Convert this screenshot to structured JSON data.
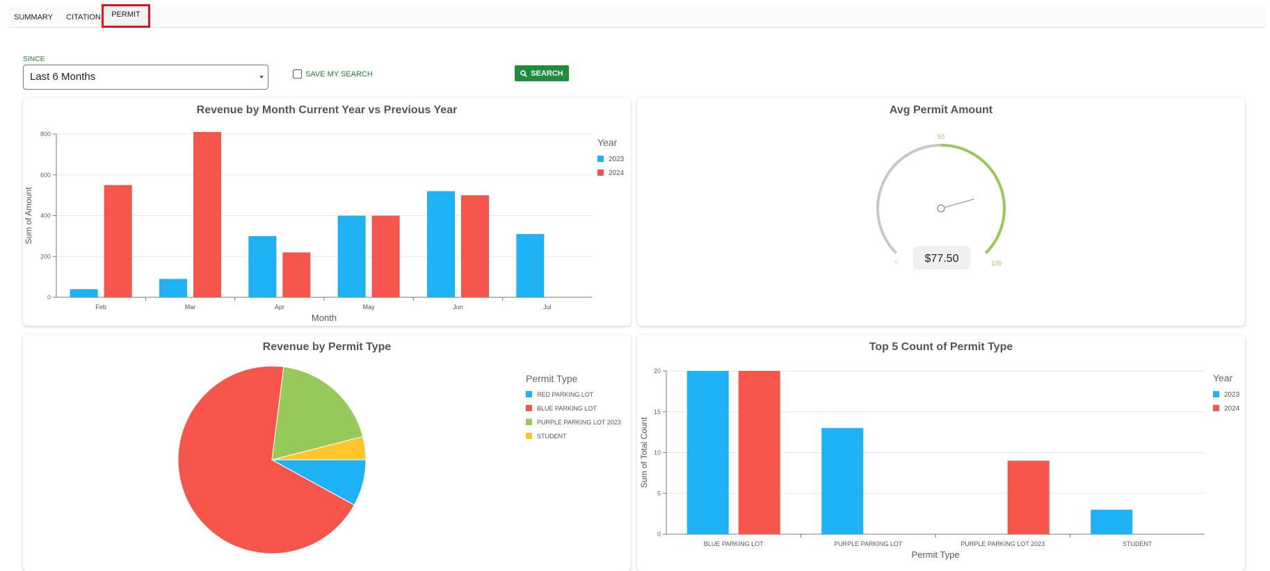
{
  "tabs": [
    {
      "label": "SUMMARY",
      "active": false
    },
    {
      "label": "CITATION",
      "active": false
    },
    {
      "label": "PERMIT",
      "active": true
    }
  ],
  "filters": {
    "since_label": "SINCE",
    "since_value": "Last 6 Months",
    "save_search_label": "SAVE MY SEARCH",
    "save_search_checked": false,
    "search_button_label": "SEARCH"
  },
  "colors": {
    "series_2023": "#1eb1f3",
    "series_2024": "#f5554b",
    "green": "#97c95a",
    "yellow": "#fec62d",
    "brand_green": "#1e8e3e"
  },
  "chart_data": [
    {
      "type": "bar",
      "title": "Revenue by Month Current Year vs Previous Year",
      "xlabel": "Month",
      "ylabel": "Sum of Amount",
      "legend_title": "Year",
      "legend_position": "right",
      "categories": [
        "Feb",
        "Mar",
        "Apr",
        "May",
        "Jun",
        "Jul"
      ],
      "ylim": [
        0,
        800
      ],
      "yticks": [
        0,
        200,
        400,
        600,
        800
      ],
      "series": [
        {
          "name": "2023",
          "values": [
            40,
            90,
            300,
            400,
            520,
            310
          ]
        },
        {
          "name": "2024",
          "values": [
            550,
            810,
            220,
            400,
            500,
            0
          ]
        }
      ]
    },
    {
      "type": "gauge",
      "title": "Avg Permit Amount",
      "min": 0,
      "max": 100,
      "mid_label": "50",
      "min_label": "0",
      "max_label": "100",
      "value": 77.5,
      "value_label": "$77.50"
    },
    {
      "type": "pie",
      "title": "Revenue by Permit Type",
      "legend_title": "Permit Type",
      "legend_position": "right",
      "slices": [
        {
          "label": "RED PARKING LOT",
          "value": 8
        },
        {
          "label": "BLUE PARKING LOT",
          "value": 69
        },
        {
          "label": "PURPLE PARKING LOT 2023",
          "value": 19
        },
        {
          "label": "STUDENT",
          "value": 4
        }
      ]
    },
    {
      "type": "bar",
      "title": "Top 5 Count of Permit Type",
      "xlabel": "Permit Type",
      "ylabel": "Sum of Total Count",
      "legend_title": "Year",
      "legend_position": "right",
      "categories": [
        "BLUE PARKING LOT",
        "PURPLE PARKING LOT",
        "PURPLE PARKING LOT 2023",
        "STUDENT"
      ],
      "ylim": [
        0,
        20
      ],
      "yticks": [
        0,
        5,
        10,
        15,
        20
      ],
      "series": [
        {
          "name": "2023",
          "values": [
            20,
            13,
            0,
            3
          ]
        },
        {
          "name": "2024",
          "values": [
            20,
            0,
            9,
            0
          ]
        }
      ]
    }
  ]
}
